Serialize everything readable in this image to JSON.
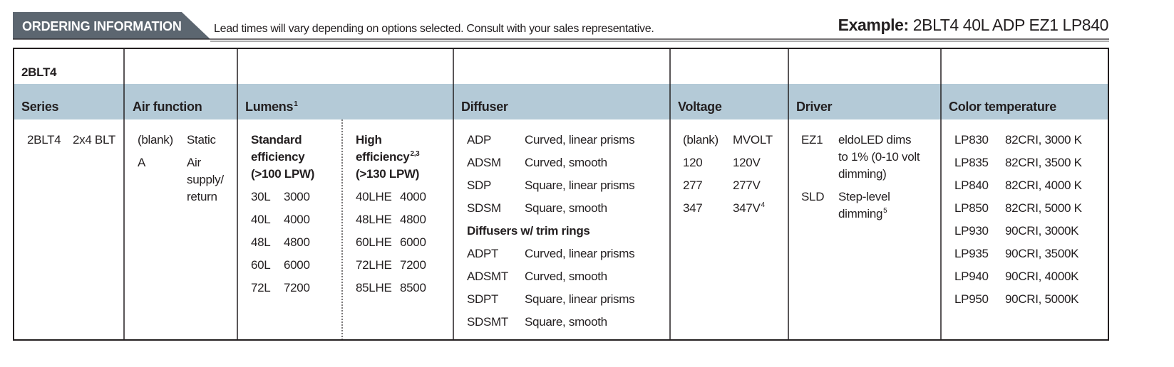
{
  "header": {
    "title": "ORDERING INFORMATION",
    "note": "Lead times will vary depending on options selected. Consult with your sales representative.",
    "example_label": "Example:",
    "example_value": "2BLT4 40L ADP EZ1 LP840"
  },
  "table": {
    "series_code": "2BLT4",
    "columns": [
      {
        "title": "Series",
        "rows": [
          [
            "2BLT4",
            "2x4 BLT"
          ]
        ]
      },
      {
        "title": "Air function",
        "rows": [
          [
            "(blank)",
            "Static"
          ],
          [
            "A",
            "Air supply/ return"
          ]
        ]
      },
      {
        "title": "Lumens",
        "note": "1",
        "groups": [
          {
            "title": "Standard efficiency",
            "subtitle": "(>100 LPW)",
            "rows": [
              [
                "30L",
                "3000"
              ],
              [
                "40L",
                "4000"
              ],
              [
                "48L",
                "4800"
              ],
              [
                "60L",
                "6000"
              ],
              [
                "72L",
                "7200"
              ]
            ]
          },
          {
            "title": "High efficiency",
            "note": "2,3",
            "subtitle": "(>130 LPW)",
            "rows": [
              [
                "40LHE",
                "4000"
              ],
              [
                "48LHE",
                "4800"
              ],
              [
                "60LHE",
                "6000"
              ],
              [
                "72LHE",
                "7200"
              ],
              [
                "85LHE",
                "8500"
              ]
            ]
          }
        ]
      },
      {
        "title": "Diffuser",
        "groups": [
          {
            "rows": [
              [
                "ADP",
                "Curved, linear prisms"
              ],
              [
                "ADSM",
                "Curved, smooth"
              ],
              [
                "SDP",
                "Square, linear prisms"
              ],
              [
                "SDSM",
                "Square, smooth"
              ]
            ]
          },
          {
            "title": "Diffusers w/ trim rings",
            "rows": [
              [
                "ADPT",
                "Curved, linear prisms"
              ],
              [
                "ADSMT",
                "Curved, smooth"
              ],
              [
                "SDPT",
                "Square, linear prisms"
              ],
              [
                "SDSMT",
                "Square, smooth"
              ]
            ]
          }
        ]
      },
      {
        "title": "Voltage",
        "rows": [
          [
            "(blank)",
            "MVOLT"
          ],
          [
            "120",
            "120V"
          ],
          [
            "277",
            "277V"
          ],
          [
            "347",
            "347V",
            "4"
          ]
        ]
      },
      {
        "title": "Driver",
        "rows": [
          [
            "EZ1",
            "eldoLED dims to 1% (0-10 volt dimming)"
          ],
          [
            "SLD",
            "Step-level dimming",
            "5"
          ]
        ]
      },
      {
        "title": "Color temperature",
        "rows": [
          [
            "LP830",
            "82CRI, 3000 K"
          ],
          [
            "LP835",
            "82CRI, 3500 K"
          ],
          [
            "LP840",
            "82CRI, 4000 K"
          ],
          [
            "LP850",
            "82CRI, 5000 K"
          ],
          [
            "LP930",
            "90CRI, 3000K"
          ],
          [
            "LP935",
            "90CRI, 3500K"
          ],
          [
            "LP940",
            "90CRI, 4000K"
          ],
          [
            "LP950",
            "90CRI, 5000K"
          ]
        ]
      }
    ]
  }
}
